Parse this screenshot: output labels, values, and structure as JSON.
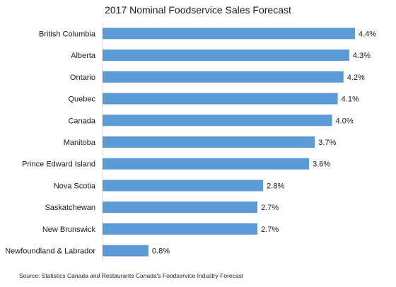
{
  "chart_data": {
    "type": "bar",
    "orientation": "horizontal",
    "title": "2017 Nominal Foodservice Sales Forecast",
    "categories": [
      "British Columbia",
      "Alberta",
      "Ontario",
      "Quebec",
      "Canada",
      "Manitoba",
      "Prince Edward Island",
      "Nova Scotia",
      "Saskatchewan",
      "New Brunswick",
      "Newfoundland & Labrador"
    ],
    "values": [
      4.4,
      4.3,
      4.2,
      4.1,
      4.0,
      3.7,
      3.6,
      2.8,
      2.7,
      2.7,
      0.8
    ],
    "value_labels": [
      "4.4%",
      "4.3%",
      "4.2%",
      "4.1%",
      "4.0%",
      "3.7%",
      "3.6%",
      "2.8%",
      "2.7%",
      "2.7%",
      "0.8%"
    ],
    "unit": "%",
    "xlim": [
      0,
      4.4
    ],
    "grid": false,
    "legend": "none",
    "bar_color": "#5b9bd5",
    "source": "Source:  Statistics Canada and Restaurants Canada's Foodservice Industry Forecast"
  }
}
